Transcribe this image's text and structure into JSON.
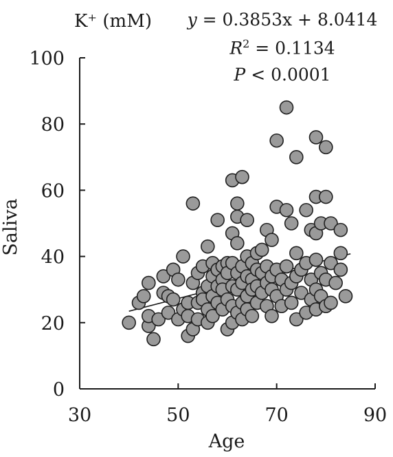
{
  "chart_data": {
    "type": "scatter",
    "title": "K⁺ (mM)",
    "xlabel": "Age",
    "ylabel": "Saliva",
    "xlim": [
      30,
      90
    ],
    "ylim": [
      0,
      100
    ],
    "xticks": [
      "30",
      "50",
      "70",
      "90"
    ],
    "yticks": [
      "0",
      "20",
      "40",
      "60",
      "80",
      "100"
    ],
    "annotation": {
      "line1_lhs": "y",
      "line1_rhs": " = 0.3853x + 8.0414",
      "line2_lhs": "R",
      "line2_sup": "2",
      "line2_rhs": " = 0.1134",
      "line3_lhs": "P",
      "line3_rhs": " < 0.0001"
    },
    "trendline": {
      "slope": 0.3853,
      "intercept": 8.0414,
      "x_range": [
        40,
        85
      ]
    },
    "marker_color": "#9a9a9a",
    "marker_stroke": "#1f1f1f",
    "points": [
      [
        40,
        20
      ],
      [
        42,
        26
      ],
      [
        43,
        28
      ],
      [
        44,
        19
      ],
      [
        44,
        22
      ],
      [
        44,
        32
      ],
      [
        45,
        15
      ],
      [
        46,
        21
      ],
      [
        47,
        34
      ],
      [
        47,
        29
      ],
      [
        48,
        28
      ],
      [
        48,
        23
      ],
      [
        49,
        36
      ],
      [
        49,
        27
      ],
      [
        50,
        33
      ],
      [
        50,
        21
      ],
      [
        51,
        24
      ],
      [
        51,
        40
      ],
      [
        52,
        26
      ],
      [
        52,
        16
      ],
      [
        52,
        22
      ],
      [
        53,
        56
      ],
      [
        53,
        18
      ],
      [
        53,
        32
      ],
      [
        54,
        26
      ],
      [
        54,
        35
      ],
      [
        54,
        21
      ],
      [
        55,
        37
      ],
      [
        55,
        29
      ],
      [
        55,
        27
      ],
      [
        56,
        43
      ],
      [
        56,
        31
      ],
      [
        56,
        24
      ],
      [
        56,
        20
      ],
      [
        57,
        34
      ],
      [
        57,
        38
      ],
      [
        57,
        28
      ],
      [
        57,
        22
      ],
      [
        58,
        51
      ],
      [
        58,
        36
      ],
      [
        58,
        31
      ],
      [
        58,
        26
      ],
      [
        59,
        37
      ],
      [
        59,
        33
      ],
      [
        59,
        30
      ],
      [
        59,
        24
      ],
      [
        60,
        38
      ],
      [
        60,
        35
      ],
      [
        60,
        27
      ],
      [
        60,
        18
      ],
      [
        61,
        63
      ],
      [
        61,
        47
      ],
      [
        61,
        38
      ],
      [
        61,
        31
      ],
      [
        61,
        25
      ],
      [
        61,
        20
      ],
      [
        62,
        56
      ],
      [
        62,
        52
      ],
      [
        62,
        44
      ],
      [
        62,
        35
      ],
      [
        62,
        30
      ],
      [
        62,
        23
      ],
      [
        63,
        64
      ],
      [
        63,
        37
      ],
      [
        63,
        32
      ],
      [
        63,
        26
      ],
      [
        63,
        21
      ],
      [
        64,
        51
      ],
      [
        64,
        40
      ],
      [
        64,
        34
      ],
      [
        64,
        28
      ],
      [
        64,
        24
      ],
      [
        65,
        38
      ],
      [
        65,
        33
      ],
      [
        65,
        30
      ],
      [
        65,
        22
      ],
      [
        66,
        41
      ],
      [
        66,
        36
      ],
      [
        66,
        31
      ],
      [
        66,
        26
      ],
      [
        67,
        42
      ],
      [
        67,
        35
      ],
      [
        67,
        29
      ],
      [
        68,
        48
      ],
      [
        68,
        37
      ],
      [
        68,
        32
      ],
      [
        68,
        25
      ],
      [
        69,
        45
      ],
      [
        69,
        34
      ],
      [
        69,
        30
      ],
      [
        69,
        22
      ],
      [
        70,
        75
      ],
      [
        70,
        55
      ],
      [
        70,
        36
      ],
      [
        70,
        28
      ],
      [
        71,
        33
      ],
      [
        71,
        25
      ],
      [
        72,
        85
      ],
      [
        72,
        54
      ],
      [
        72,
        37
      ],
      [
        72,
        30
      ],
      [
        73,
        50
      ],
      [
        73,
        32
      ],
      [
        73,
        26
      ],
      [
        74,
        70
      ],
      [
        74,
        41
      ],
      [
        74,
        34
      ],
      [
        74,
        21
      ],
      [
        75,
        36
      ],
      [
        75,
        29
      ],
      [
        76,
        54
      ],
      [
        76,
        38
      ],
      [
        76,
        23
      ],
      [
        77,
        48
      ],
      [
        77,
        33
      ],
      [
        77,
        27
      ],
      [
        78,
        76
      ],
      [
        78,
        58
      ],
      [
        78,
        47
      ],
      [
        78,
        39
      ],
      [
        78,
        30
      ],
      [
        78,
        24
      ],
      [
        79,
        50
      ],
      [
        79,
        35
      ],
      [
        79,
        28
      ],
      [
        80,
        73
      ],
      [
        80,
        58
      ],
      [
        80,
        33
      ],
      [
        80,
        25
      ],
      [
        81,
        50
      ],
      [
        81,
        38
      ],
      [
        81,
        26
      ],
      [
        82,
        32
      ],
      [
        83,
        48
      ],
      [
        83,
        41
      ],
      [
        83,
        36
      ],
      [
        84,
        28
      ]
    ]
  }
}
